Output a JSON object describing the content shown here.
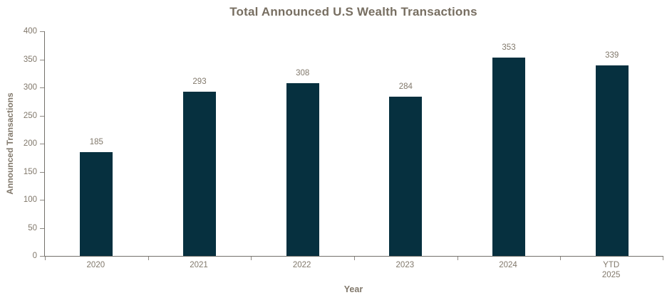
{
  "chart_data": {
    "type": "bar",
    "title": "Total Announced U.S Wealth Transactions",
    "xlabel": "Year",
    "ylabel": "Announced Transactions",
    "categories": [
      "2020",
      "2021",
      "2022",
      "2023",
      "2024",
      "YTD\n2025"
    ],
    "values": [
      185,
      293,
      308,
      284,
      353,
      339
    ],
    "ylim": [
      0,
      400
    ],
    "ytick_step": 50,
    "yticks": [
      0,
      50,
      100,
      150,
      200,
      250,
      300,
      350,
      400
    ],
    "grid": false,
    "legend": "none",
    "data_labels": true,
    "colors": {
      "bar": "#06303F",
      "title": "#776E61",
      "text": "#81786B",
      "axis": "#73706B",
      "tick": "#8E8A84",
      "background": "#FFFFFF"
    }
  }
}
